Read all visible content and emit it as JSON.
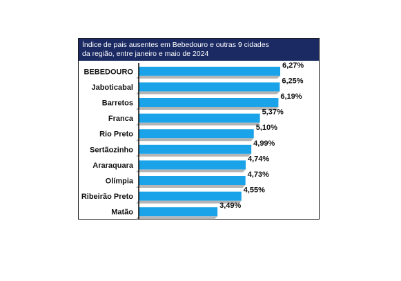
{
  "title": {
    "line1": "Índice de pais ausentes em Bebedouro e outras 9 cidades",
    "line2": "da região, entre janeiro e maio de 2024"
  },
  "colors": {
    "title_bg": "#1b2a63",
    "bar": "#1aa3e8",
    "bar_shadow": "#b5b5b5",
    "axis": "#111111"
  },
  "chart_data": {
    "type": "bar",
    "orientation": "horizontal",
    "title": "Índice de pais ausentes em Bebedouro e outras 9 cidades da região, entre janeiro e maio de 2024",
    "categories": [
      "BEBEDOURO",
      "Jaboticabal",
      "Barretos",
      "Franca",
      "Rio Preto",
      "Sertãozinho",
      "Araraquara",
      "Olímpia",
      "Ribeirão Preto",
      "Matão"
    ],
    "values": [
      6.27,
      6.25,
      6.19,
      5.37,
      5.1,
      4.99,
      4.74,
      4.73,
      4.55,
      3.49
    ],
    "labels": [
      "6,27%",
      "6,25%",
      "6,19%",
      "5,37%",
      "5,10%",
      "4,99%",
      "4,74%",
      "4,73%",
      "4,55%",
      "3,49%"
    ],
    "xlim": [
      0,
      6.27
    ],
    "grid": false,
    "legend": "none"
  }
}
